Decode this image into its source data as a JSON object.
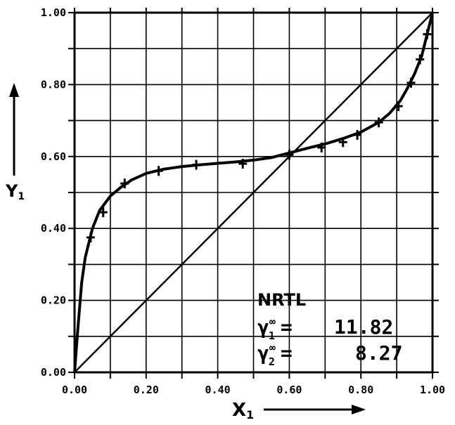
{
  "chart_data": {
    "type": "line",
    "title": "",
    "xlabel": "X",
    "xlabel_subscript": "1",
    "ylabel": "Y",
    "ylabel_subscript": "1",
    "xlim": [
      0,
      1
    ],
    "ylim": [
      0,
      1
    ],
    "grid": true,
    "x_ticks": [
      0.0,
      0.2,
      0.4,
      0.6,
      0.8,
      1.0
    ],
    "y_ticks": [
      0.0,
      0.2,
      0.4,
      0.6,
      0.8,
      1.0
    ],
    "x_tick_labels": [
      "0.00",
      "0.20",
      "0.40",
      "0.60",
      "0.80",
      "1.00"
    ],
    "y_tick_labels": [
      "0.00",
      "0.20",
      "0.40",
      "0.60",
      "0.80",
      "1.00"
    ],
    "series": [
      {
        "type": "line",
        "x": [
          0.0,
          1.0
        ],
        "y": [
          0.0,
          1.0
        ]
      },
      {
        "type": "line",
        "x": [
          0.0,
          0.01,
          0.02,
          0.03,
          0.05,
          0.07,
          0.1,
          0.13,
          0.16,
          0.2,
          0.25,
          0.3,
          0.35,
          0.4,
          0.45,
          0.5,
          0.55,
          0.6,
          0.65,
          0.7,
          0.75,
          0.8,
          0.85,
          0.88,
          0.91,
          0.93,
          0.95,
          0.97,
          0.98,
          0.99,
          1.0
        ],
        "y": [
          0.0,
          0.13,
          0.25,
          0.32,
          0.4,
          0.45,
          0.49,
          0.515,
          0.535,
          0.553,
          0.565,
          0.572,
          0.577,
          0.581,
          0.585,
          0.59,
          0.597,
          0.61,
          0.623,
          0.635,
          0.65,
          0.668,
          0.695,
          0.72,
          0.755,
          0.79,
          0.83,
          0.88,
          0.92,
          0.96,
          1.0
        ]
      },
      {
        "type": "scatter",
        "x": [
          0.045,
          0.08,
          0.14,
          0.235,
          0.34,
          0.47,
          0.6,
          0.69,
          0.75,
          0.79,
          0.85,
          0.905,
          0.94,
          0.965,
          0.985
        ],
        "y": [
          0.375,
          0.445,
          0.525,
          0.56,
          0.577,
          0.58,
          0.605,
          0.625,
          0.64,
          0.66,
          0.695,
          0.74,
          0.805,
          0.87,
          0.94
        ]
      }
    ],
    "annotation": {
      "title": "NRTL",
      "rows": [
        {
          "symbol": "γ",
          "sup": "∞",
          "sub": "1",
          "equals": "=",
          "value": "11.82"
        },
        {
          "symbol": "γ",
          "sup": "∞",
          "sub": "2",
          "equals": "=",
          "value": "8.27"
        }
      ]
    }
  }
}
